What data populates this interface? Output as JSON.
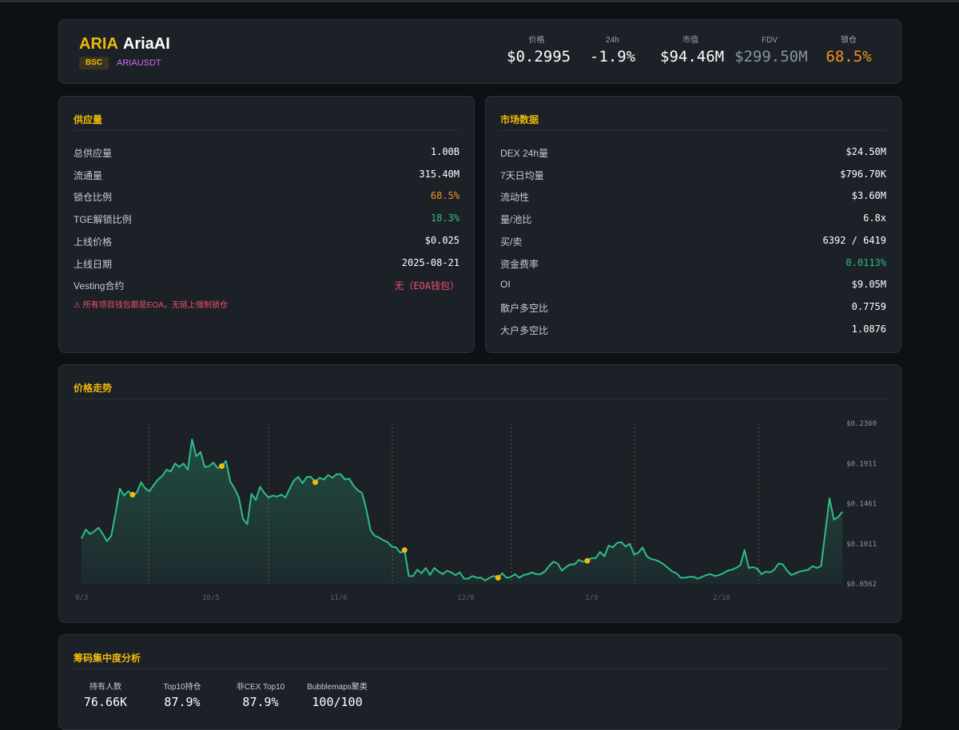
{
  "header": {
    "ticker": "ARIA",
    "name": "AriaAI",
    "chain": "BSC",
    "pair": "ARIAUSDT",
    "stats": [
      {
        "label": "价格",
        "value": "$0.2995",
        "color": "#ffffff"
      },
      {
        "label": "24h",
        "value": "-1.9%",
        "color": "#ffffff"
      },
      {
        "label": "市值",
        "value": "$94.46M",
        "color": "#ffffff"
      },
      {
        "label": "FDV",
        "value": "$299.50M",
        "color": "#8a939d"
      },
      {
        "label": "锁仓",
        "value": "68.5%",
        "color": "#f7931a"
      }
    ]
  },
  "supply": {
    "title": "供应量",
    "rows": [
      {
        "label": "总供应量",
        "value": "1.00B",
        "color": "#ffffff"
      },
      {
        "label": "流通量",
        "value": "315.40M",
        "color": "#ffffff"
      },
      {
        "label": "锁仓比例",
        "value": "68.5%",
        "color": "#f7931a"
      },
      {
        "label": "TGE解锁比例",
        "value": "18.3%",
        "color": "#2ebd85"
      },
      {
        "label": "上线价格",
        "value": "$0.025",
        "color": "#ffffff"
      },
      {
        "label": "上线日期",
        "value": "2025-08-21",
        "color": "#ffffff"
      },
      {
        "label": "Vesting合约",
        "value": "无（EOA钱包）",
        "color": "#f0506e"
      }
    ],
    "warning": "⚠ 所有项目钱包都是EOA，无链上强制锁仓"
  },
  "market": {
    "title": "市场数据",
    "rows": [
      {
        "label": "DEX 24h量",
        "value": "$24.50M",
        "color": "#ffffff"
      },
      {
        "label": "7天日均量",
        "value": "$796.70K",
        "color": "#ffffff"
      },
      {
        "label": "流动性",
        "value": "$3.60M",
        "color": "#ffffff"
      },
      {
        "label": "量/池比",
        "value": "6.8x",
        "color": "#ffffff"
      },
      {
        "label": "买/卖",
        "value": "6392 / 6419",
        "color": "#ffffff"
      },
      {
        "label": "资金费率",
        "value": "0.0113%",
        "color": "#2ebd85"
      },
      {
        "label": "OI",
        "value": "$9.05M",
        "color": "#ffffff"
      },
      {
        "label": "散户多空比",
        "value": "0.7759",
        "color": "#ffffff"
      },
      {
        "label": "大户多空比",
        "value": "1.0876",
        "color": "#ffffff"
      }
    ]
  },
  "chart": {
    "title": "价格走势",
    "chart_data": {
      "type": "area",
      "title": "价格走势",
      "y_ticks": [
        "$0.2360",
        "$0.1911",
        "$0.1461",
        "$0.1011",
        "$0.0562"
      ],
      "ylim": [
        0.0562,
        0.236
      ],
      "x_ticks": [
        "9/3",
        "10/5",
        "11/6",
        "12/8",
        "1/9",
        "2/10"
      ],
      "line_color": "#2ebd85",
      "marker_color": "#f0b90b",
      "grid": false,
      "series": [
        {
          "values": [
            0.107,
            0.117,
            0.112,
            0.115,
            0.119,
            0.112,
            0.104,
            0.11,
            0.135,
            0.163,
            0.155,
            0.16,
            0.156,
            0.158,
            0.17,
            0.163,
            0.16,
            0.167,
            0.173,
            0.177,
            0.184,
            0.182,
            0.191,
            0.187,
            0.191,
            0.184,
            0.218,
            0.199,
            0.204,
            0.187,
            0.188,
            0.192,
            0.186,
            0.188,
            0.194,
            0.171,
            0.163,
            0.153,
            0.129,
            0.123,
            0.157,
            0.15,
            0.165,
            0.158,
            0.153,
            0.155,
            0.154,
            0.156,
            0.153,
            0.163,
            0.172,
            0.176,
            0.169,
            0.176,
            0.176,
            0.17,
            0.175,
            0.173,
            0.178,
            0.175,
            0.179,
            0.179,
            0.173,
            0.174,
            0.166,
            0.161,
            0.158,
            0.14,
            0.116,
            0.11,
            0.108,
            0.105,
            0.103,
            0.098,
            0.097,
            0.091,
            0.094,
            0.065,
            0.065,
            0.072,
            0.068,
            0.074,
            0.066,
            0.074,
            0.07,
            0.067,
            0.071,
            0.069,
            0.066,
            0.069,
            0.062,
            0.062,
            0.065,
            0.063,
            0.063,
            0.06,
            0.063,
            0.065,
            0.063,
            0.068,
            0.063,
            0.064,
            0.067,
            0.063,
            0.066,
            0.067,
            0.069,
            0.067,
            0.067,
            0.07,
            0.076,
            0.081,
            0.079,
            0.071,
            0.075,
            0.078,
            0.078,
            0.083,
            0.081,
            0.082,
            0.085,
            0.085,
            0.092,
            0.087,
            0.099,
            0.097,
            0.102,
            0.103,
            0.098,
            0.101,
            0.089,
            0.091,
            0.097,
            0.087,
            0.084,
            0.083,
            0.081,
            0.078,
            0.074,
            0.07,
            0.068,
            0.063,
            0.063,
            0.064,
            0.064,
            0.062,
            0.064,
            0.066,
            0.067,
            0.065,
            0.066,
            0.068,
            0.071,
            0.072,
            0.074,
            0.077,
            0.094,
            0.074,
            0.075,
            0.073,
            0.067,
            0.07,
            0.069,
            0.072,
            0.079,
            0.078,
            0.071,
            0.066,
            0.068,
            0.07,
            0.071,
            0.072,
            0.076,
            0.074,
            0.076,
            0.114,
            0.152,
            0.128,
            0.131,
            0.137
          ]
        }
      ],
      "markers": [
        12,
        33,
        69,
        75,
        98,
        105,
        122,
        134,
        151,
        165
      ]
    }
  },
  "concentration": {
    "title": "筹码集中度分析",
    "stats": [
      {
        "label": "持有人数",
        "value": "76.66K"
      },
      {
        "label": "Top10持仓",
        "value": "87.9%"
      },
      {
        "label": "非CEX Top10",
        "value": "87.9%"
      },
      {
        "label": "Bubblemaps聚类",
        "value": "100/100"
      }
    ]
  }
}
